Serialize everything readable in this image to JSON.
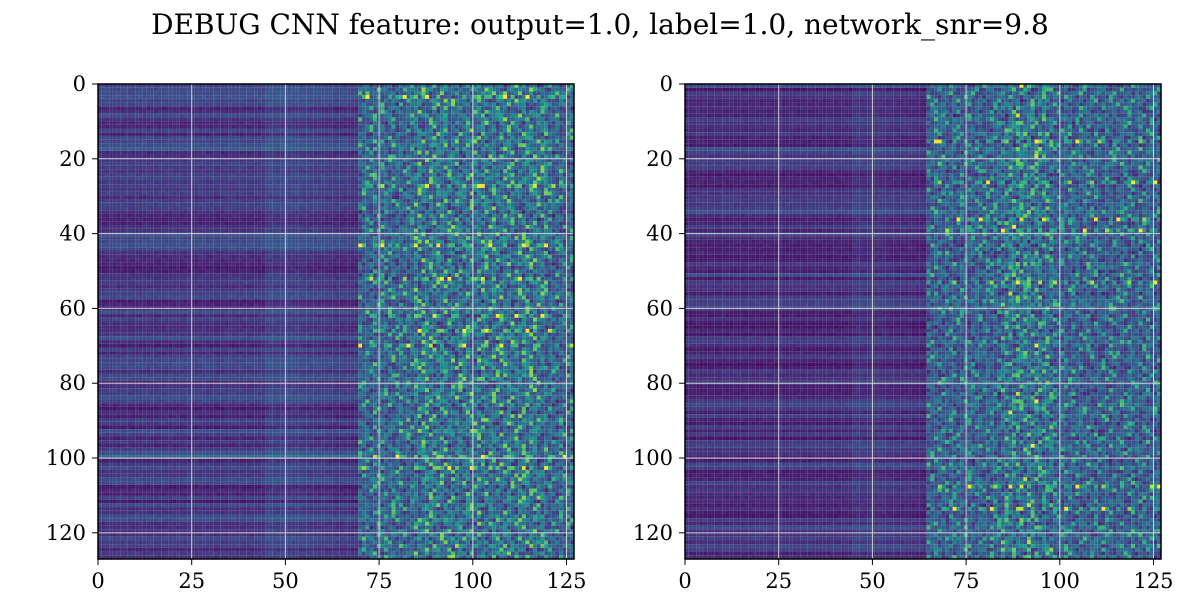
{
  "figure": {
    "title": "DEBUG CNN feature: output=1.0, label=1.0, network_snr=9.8"
  },
  "chart_data": [
    {
      "type": "heatmap",
      "title": "",
      "xlabel": "",
      "ylabel": "",
      "colormap": "viridis",
      "grid": true,
      "rows": 128,
      "cols": 128,
      "xlim": [
        0,
        127
      ],
      "ylim": [
        127,
        0
      ],
      "x_ticks": [
        0,
        25,
        50,
        75,
        100,
        125
      ],
      "y_ticks": [
        0,
        20,
        40,
        60,
        80,
        100,
        120
      ],
      "x_tick_labels": [
        "0",
        "25",
        "50",
        "75",
        "100",
        "125"
      ],
      "y_tick_labels": [
        "0",
        "20",
        "40",
        "60",
        "80",
        "100",
        "120"
      ],
      "pattern": {
        "dark_region_cols": [
          0,
          70
        ],
        "noisy_region_cols": [
          70,
          127
        ],
        "bright_cols": [
          85,
          120
        ],
        "bright_rows_hint": [
          3,
          27,
          43,
          52,
          62,
          66,
          70,
          100,
          103
        ]
      }
    },
    {
      "type": "heatmap",
      "title": "",
      "xlabel": "",
      "ylabel": "",
      "colormap": "viridis",
      "grid": true,
      "rows": 128,
      "cols": 128,
      "xlim": [
        0,
        127
      ],
      "ylim": [
        127,
        0
      ],
      "x_ticks": [
        0,
        25,
        50,
        75,
        100,
        125
      ],
      "y_ticks": [
        0,
        20,
        40,
        60,
        80,
        100,
        120
      ],
      "x_tick_labels": [
        "0",
        "25",
        "50",
        "75",
        "100",
        "125"
      ],
      "y_tick_labels": [
        "0",
        "20",
        "40",
        "60",
        "80",
        "100",
        "120"
      ],
      "pattern": {
        "dark_region_cols": [
          0,
          65
        ],
        "noisy_region_cols": [
          65,
          127
        ],
        "bright_cols": [
          85,
          98
        ],
        "bright_rows_hint": [
          15,
          26,
          36,
          39,
          53,
          108,
          114
        ]
      }
    }
  ]
}
